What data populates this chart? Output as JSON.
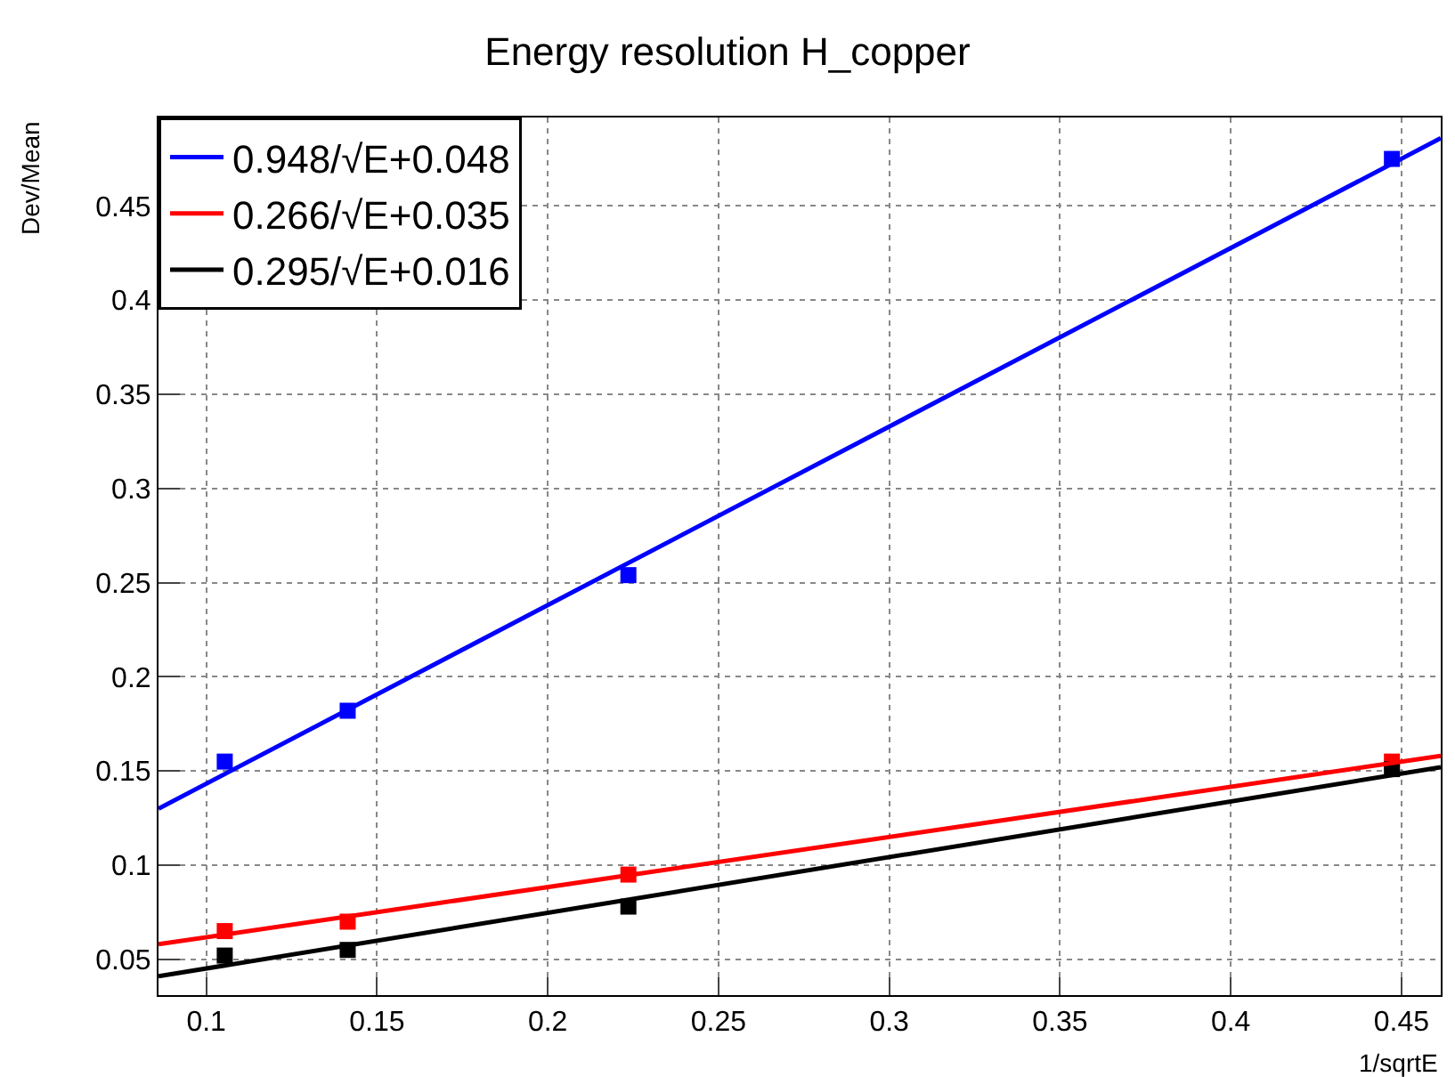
{
  "chart_data": {
    "type": "scatter",
    "title": "Energy resolution H_copper",
    "xlabel": "1/sqrtE",
    "ylabel": "Dev/Mean",
    "xlim": [
      0.086,
      0.4615
    ],
    "ylim": [
      0.031,
      0.497
    ],
    "xticks": [
      0.1,
      0.15,
      0.2,
      0.25,
      0.3,
      0.35,
      0.4,
      0.45
    ],
    "yticks": [
      0.05,
      0.1,
      0.15,
      0.2,
      0.25,
      0.3,
      0.35,
      0.4,
      0.45
    ],
    "grid": true,
    "legend": "top left",
    "series": [
      {
        "marker": "square",
        "color": "#0000ff",
        "x": [
          0.1054,
          0.1414,
          0.2236,
          0.4472
        ],
        "values": [
          0.155,
          0.182,
          0.254,
          0.475
        ]
      },
      {
        "marker": "square",
        "color": "#ff0000",
        "x": [
          0.1054,
          0.1414,
          0.2236,
          0.4472
        ],
        "values": [
          0.065,
          0.07,
          0.095,
          0.155
        ]
      },
      {
        "marker": "square",
        "color": "#000000",
        "x": [
          0.1054,
          0.1414,
          0.2236,
          0.4472
        ],
        "values": [
          0.052,
          0.055,
          0.078,
          0.151
        ]
      },
      {
        "type": "line",
        "name": "0.948/√E+0.048",
        "color": "#0000ff",
        "marker": "none",
        "line_style": "solid",
        "x": [
          0.086,
          0.4615
        ],
        "values": [
          0.13,
          0.486
        ]
      },
      {
        "type": "line",
        "name": "0.266/√E+0.035",
        "color": "#ff0000",
        "marker": "none",
        "line_style": "solid",
        "x": [
          0.086,
          0.4615
        ],
        "values": [
          0.058,
          0.158
        ]
      },
      {
        "type": "line",
        "name": "0.295/√E+0.016",
        "color": "#000000",
        "marker": "none",
        "line_style": "solid",
        "x": [
          0.086,
          0.4615
        ],
        "values": [
          0.041,
          0.152
        ]
      }
    ]
  }
}
